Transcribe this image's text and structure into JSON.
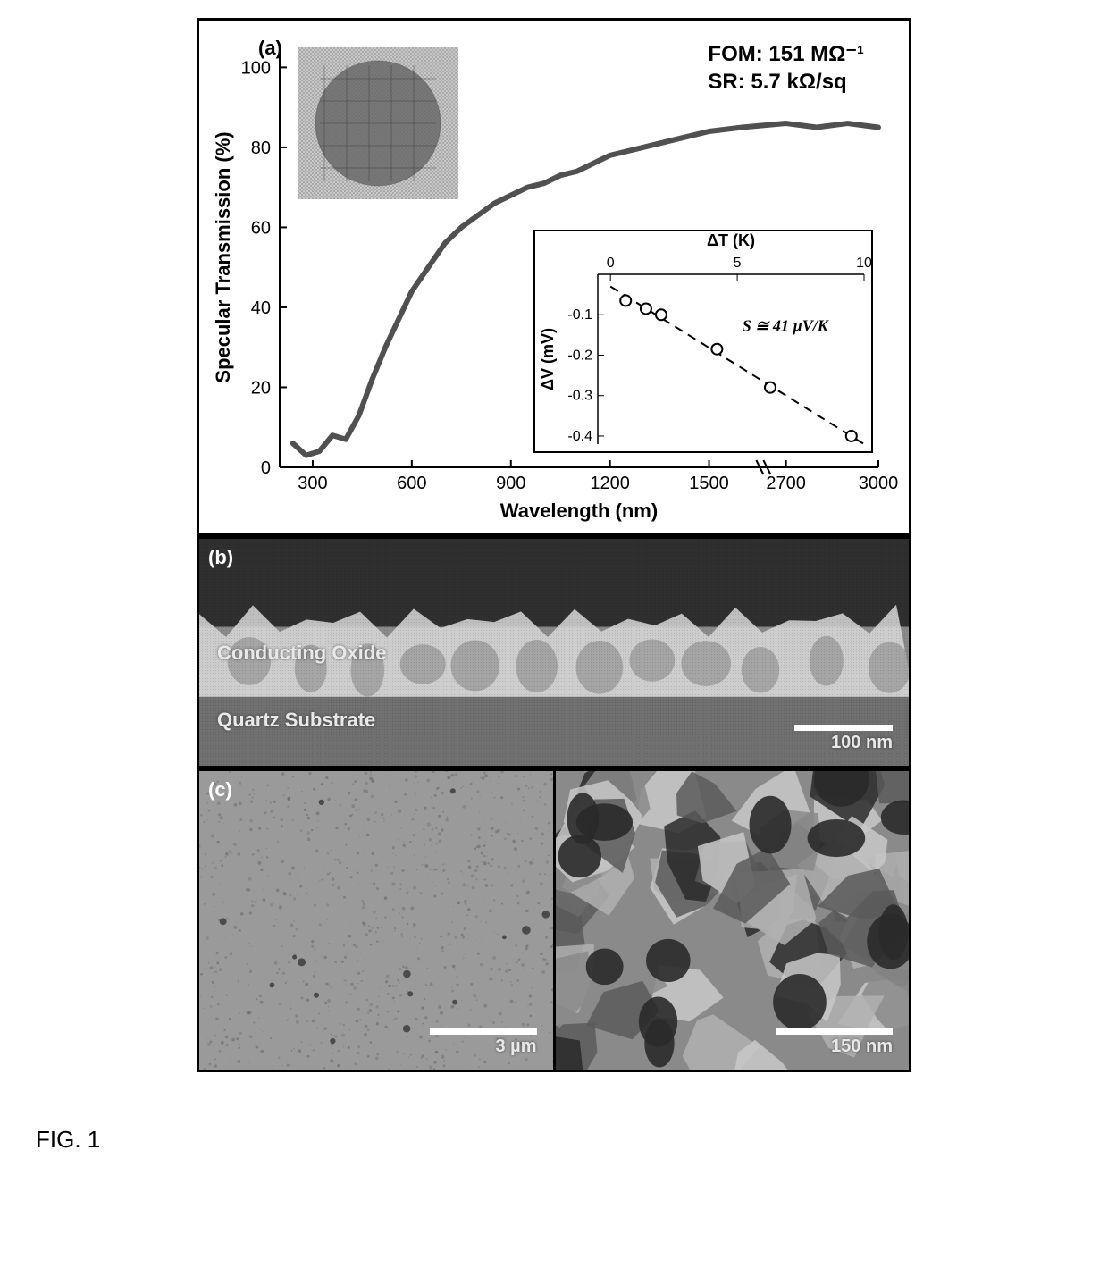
{
  "figure_caption": "FIG. 1",
  "panel_a": {
    "label": "(a)",
    "fom_line1": "FOM: 151 MΩ⁻¹",
    "fom_line2": "SR: 5.7 kΩ/sq",
    "chart": {
      "type": "line",
      "xlabel": "Wavelength (nm)",
      "ylabel": "Specular Transmission (%)",
      "label_fontsize": 22,
      "tick_fontsize": 20,
      "xlim": [
        200,
        3000
      ],
      "ylim": [
        0,
        105
      ],
      "xticks": [
        300,
        600,
        900,
        1200,
        1500,
        2700,
        3000
      ],
      "yticks": [
        0,
        20,
        40,
        60,
        80,
        100
      ],
      "axis_break_x": 1650,
      "line_color": "#505050",
      "line_width": 6,
      "background_color": "#ffffff",
      "data_x": [
        240,
        280,
        320,
        360,
        400,
        440,
        480,
        520,
        560,
        600,
        650,
        700,
        750,
        800,
        850,
        900,
        950,
        1000,
        1050,
        1100,
        1200,
        1300,
        1400,
        1500,
        1600,
        2700,
        2800,
        2900,
        3000
      ],
      "data_y": [
        6,
        3,
        4,
        8,
        7,
        13,
        22,
        30,
        37,
        44,
        50,
        56,
        60,
        63,
        66,
        68,
        70,
        71,
        73,
        74,
        78,
        80,
        82,
        84,
        85,
        86,
        85,
        86,
        85
      ]
    },
    "inset_chart": {
      "type": "scatter",
      "xlabel": "ΔT (K)",
      "ylabel": "ΔV (mV)",
      "xlabel_pos": "top",
      "label_fontsize": 18,
      "tick_fontsize": 16,
      "annotation": "S ≅ 41 µV/K",
      "annotation_fontsize": 18,
      "annotation_style": "italic-bold",
      "xlim": [
        -0.5,
        10
      ],
      "ylim": [
        -0.42,
        0
      ],
      "xticks": [
        0,
        5,
        10
      ],
      "yticks": [
        -0.4,
        -0.3,
        -0.2,
        -0.1
      ],
      "marker_style": "circle",
      "marker_size": 6,
      "marker_fill": "#ffffff",
      "marker_stroke": "#000000",
      "fit_line_style": "dashed",
      "fit_line_color": "#000000",
      "data_x": [
        0.6,
        1.4,
        2.0,
        4.2,
        6.3,
        9.5
      ],
      "data_y": [
        -0.065,
        -0.085,
        -0.1,
        -0.185,
        -0.28,
        -0.4
      ]
    },
    "wafer_inset": {
      "description": "dithered-grayscale-circular-wafer-on-patterned-background",
      "shape": "circle",
      "bg_color": "#c8c8c8",
      "wafer_color": "#6a6a6a"
    }
  },
  "panel_b": {
    "label": "(b)",
    "type": "sem-cross-section",
    "upper_label": "Conducting Oxide",
    "lower_label": "Quartz Substrate",
    "label_fontsize": 22,
    "scalebar_text": "100 nm",
    "colors": {
      "top_dark": "#2f2f2f",
      "oxide_light": "#d8d8d8",
      "oxide_mid": "#8a8a8a",
      "substrate": "#707070"
    }
  },
  "panel_c": {
    "label": "(c)",
    "type": "sem-topview-pair",
    "left": {
      "scalebar_text": "3 µm",
      "texture": "fine-grain",
      "bg_color": "#9a9a9a",
      "speckle_color": "#6a6a6a"
    },
    "right": {
      "scalebar_text": "150 nm",
      "texture": "coarse-grain",
      "grain_light": "#c8c8c8",
      "grain_mid": "#8a8a8a",
      "grain_dark": "#2a2a2a"
    }
  }
}
